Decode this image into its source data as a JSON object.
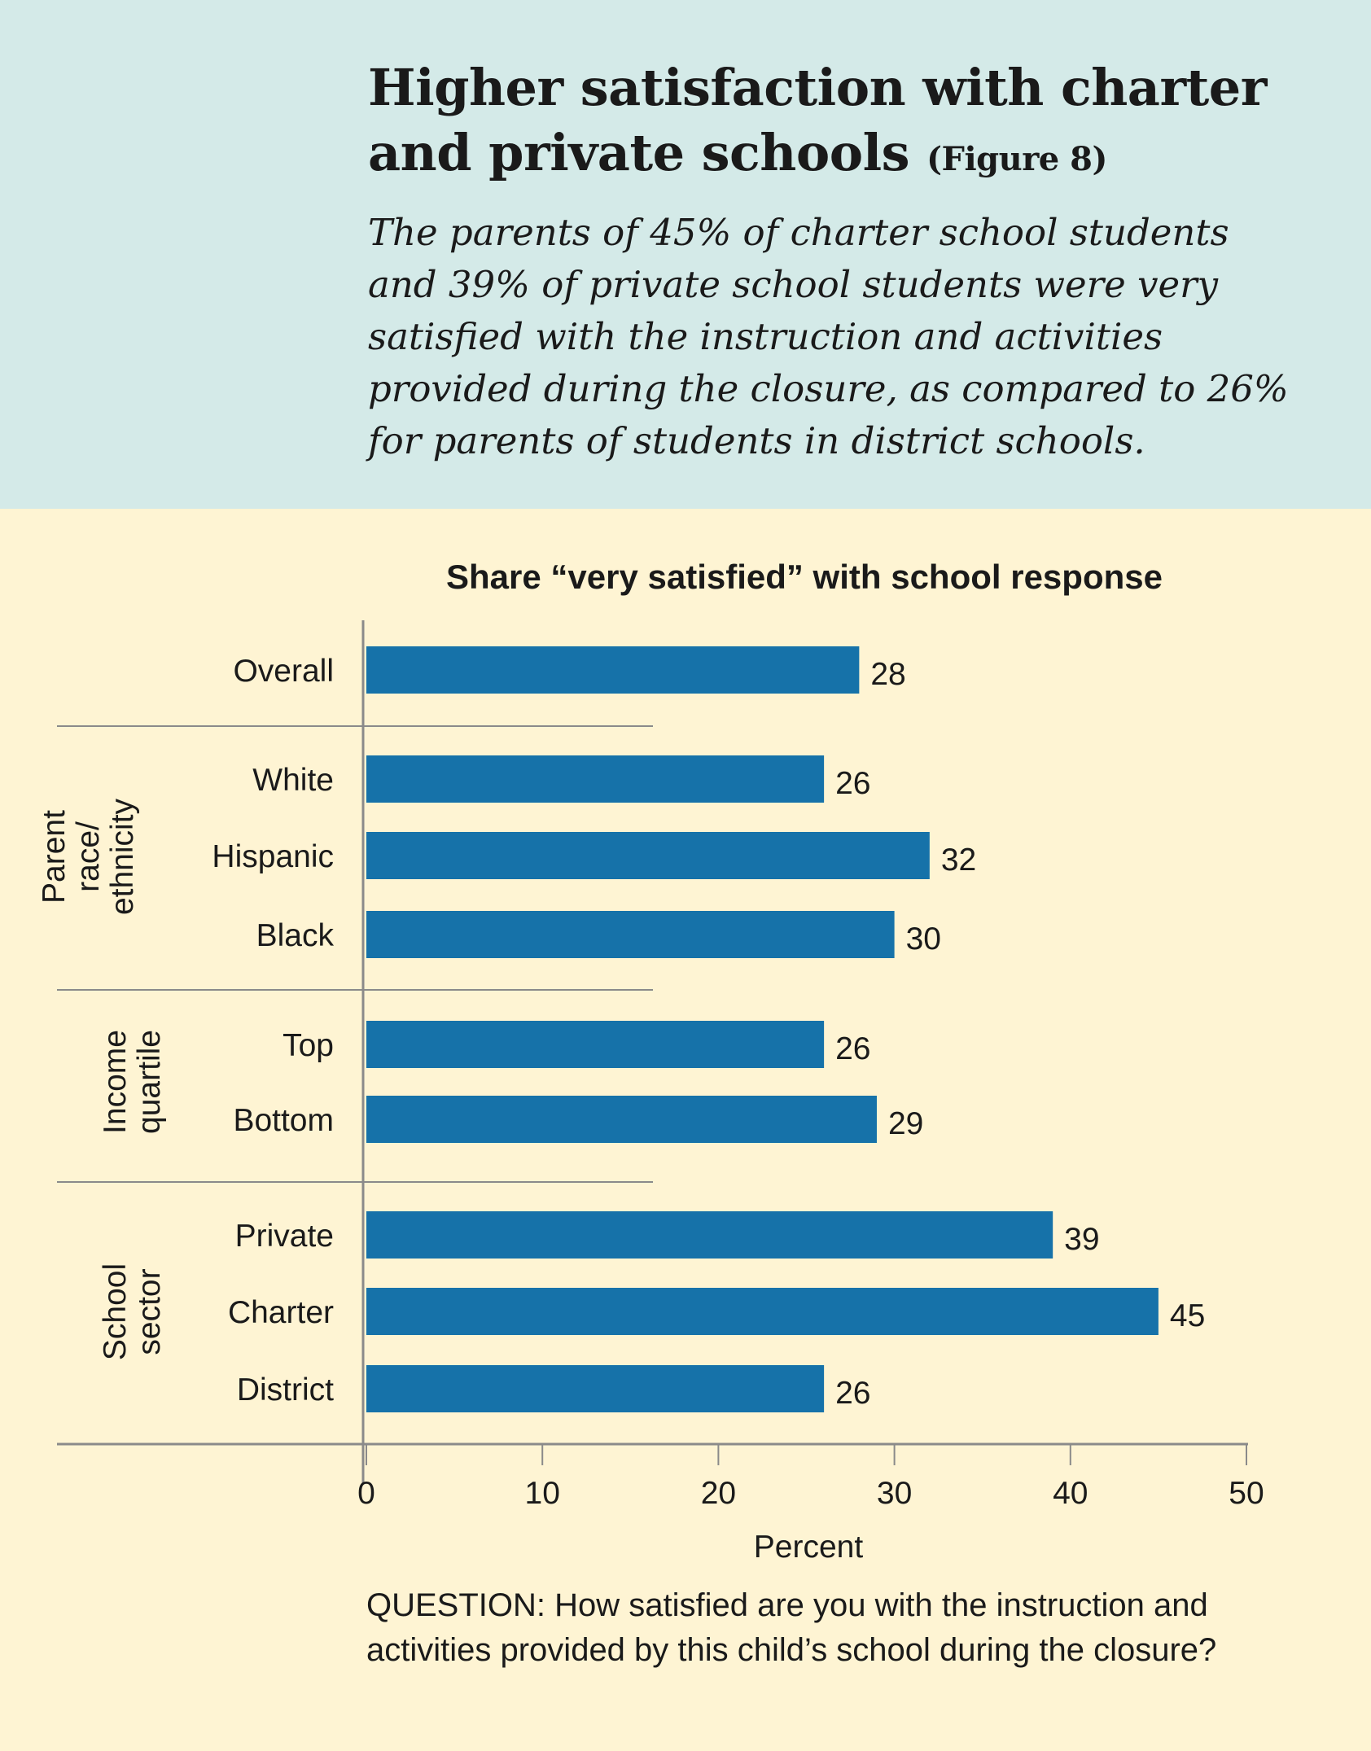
{
  "header": {
    "title": "Higher satisfaction with charter and private schools",
    "figure_ref": "(Figure 8)",
    "subtitle": "The parents of 45% of charter school students and 39% of private school students were very satisfied with the instruction and activities provided during the closure, as compared to 26% for parents of students in district schools."
  },
  "chart_data": {
    "type": "bar",
    "orientation": "horizontal",
    "title": "Share “very satisfied” with school response",
    "xlabel": "Percent",
    "xlim": [
      0,
      50
    ],
    "xticks": [
      "0",
      "10",
      "20",
      "30",
      "40",
      "50"
    ],
    "groups": [
      {
        "label": "",
        "categories": [
          "Overall"
        ],
        "values": [
          28
        ]
      },
      {
        "label": [
          "Parent",
          "race/",
          "ethnicity"
        ],
        "categories": [
          "White",
          "Hispanic",
          "Black"
        ],
        "values": [
          26,
          32,
          30
        ]
      },
      {
        "label": [
          "Income",
          "quartile"
        ],
        "categories": [
          "Top",
          "Bottom"
        ],
        "values": [
          26,
          29
        ]
      },
      {
        "label": [
          "School",
          "sector"
        ],
        "categories": [
          "Private",
          "Charter",
          "District"
        ],
        "values": [
          39,
          45,
          26
        ]
      }
    ],
    "bar_color": "#1672a9"
  },
  "footer": {
    "question": "QUESTION: How satisfied are you with the instruction and activities provided by this child’s school during the closure?"
  }
}
